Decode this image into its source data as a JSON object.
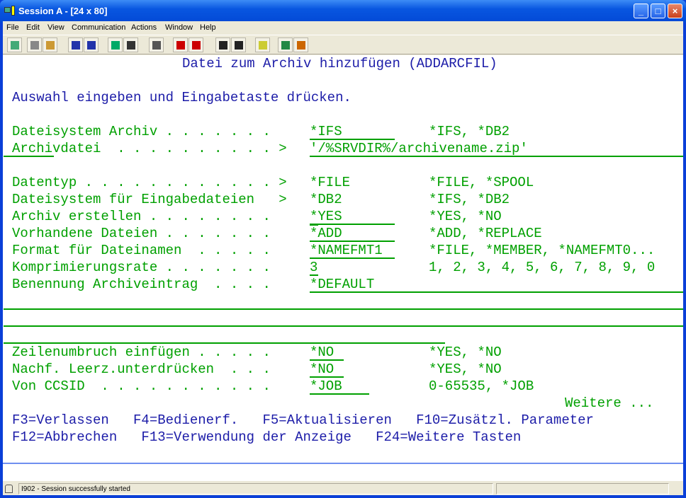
{
  "window": {
    "title": "Session A - [24 x 80]",
    "buttons": [
      "_",
      "□",
      "×"
    ]
  },
  "menu": [
    "File",
    "Edit",
    "View",
    "Communication",
    "Actions",
    "Window",
    "Help"
  ],
  "toolbar": [
    "display-icon",
    "copy-icon",
    "paste-icon",
    "send-icon",
    "receive-icon",
    "transfer-icon",
    "macro-icon",
    "keyboard-icon",
    "play-macro-icon",
    "record-macro-icon",
    "play-icon",
    "stop-icon",
    "clipboard-icon",
    "globe-help-icon",
    "help-icon"
  ],
  "screen": {
    "title": "Datei zum Archiv hinzufügen (ADDARCFIL)",
    "instruction": "Auswahl eingeben und Eingabetaste drücken.",
    "fields": [
      {
        "label": "Dateisystem Archiv . . . . . . .  ",
        "value": "*IFS",
        "options": "*IFS, *DB2"
      },
      {
        "label": "Archivdatei  . . . . . . . . . . >",
        "value": "'/%SRVDIR%/archivename.zip'",
        "options": ""
      },
      {
        "label": "Datentyp . . . . . . . . . . . . >",
        "value": "*FILE",
        "options": "*FILE, *SPOOL"
      },
      {
        "label": "Dateisystem für Eingabedateien   >",
        "value": "*DB2",
        "options": "*IFS, *DB2"
      },
      {
        "label": "Archiv erstellen . . . . . . . .  ",
        "value": "*YES",
        "options": "*YES, *NO"
      },
      {
        "label": "Vorhandene Dateien . . . . . . .  ",
        "value": "*ADD",
        "options": "*ADD, *REPLACE"
      },
      {
        "label": "Format für Dateinamen  . . . . .  ",
        "value": "*NAMEFMT1",
        "options": "*FILE, *MEMBER, *NAMEFMT0..."
      },
      {
        "label": "Komprimierungsrate . . . . . . .  ",
        "value": "3",
        "options": "1, 2, 3, 4, 5, 6, 7, 8, 9, 0"
      },
      {
        "label": "Benennung Archiveintrag  . . . .  ",
        "value": "*DEFAULT",
        "options": ""
      },
      {
        "label": "Zeilenumbruch einfügen . . . . .  ",
        "value": "*NO",
        "options": "*YES, *NO"
      },
      {
        "label": "Nachf. Leerz.unterdrücken  . . .  ",
        "value": "*NO",
        "options": "*YES, *NO"
      },
      {
        "label": "Von CCSID  . . . . . . . . . . .  ",
        "value": "*JOB",
        "options": "0-65535, *JOB"
      }
    ],
    "more": "Weitere ...",
    "fkeys1": "F3=Verlassen   F4=Bedienerf.   F5=Aktualisieren   F10=Zusätzl. Parameter",
    "fkeys2": "F12=Abbrechen   F13=Verwendung der Anzeige   F24=Weitere Tasten"
  },
  "status": {
    "message": "I902 - Session successfully started"
  },
  "colors": {
    "field": "#00a000",
    "instruction": "#1c1ca8"
  }
}
